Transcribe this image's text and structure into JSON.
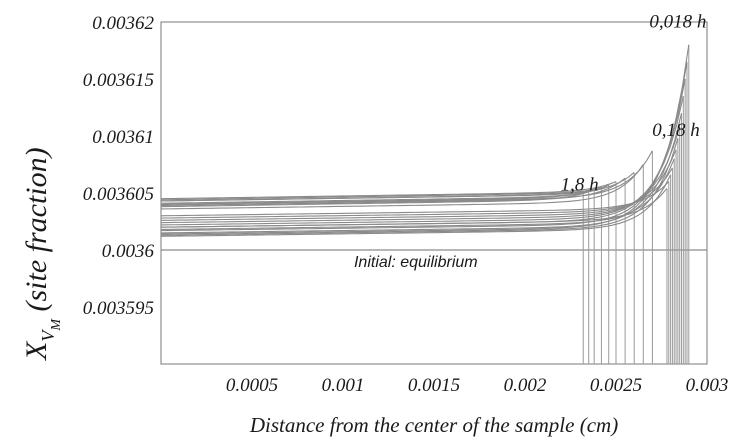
{
  "chart_data": {
    "type": "line",
    "xlabel": "Distance from the center of the sample (cm)",
    "ylabel_main": "X",
    "ylabel_sub_v": "V",
    "ylabel_sub_m": "M",
    "ylabel_rest": " (site fraction)",
    "xlim": [
      0,
      0.003
    ],
    "ylim": [
      0.00359,
      0.00362
    ],
    "x_ticks": [
      {
        "v": 0.0005,
        "label": "0.0005"
      },
      {
        "v": 0.001,
        "label": "0.001"
      },
      {
        "v": 0.0015,
        "label": "0.0015"
      },
      {
        "v": 0.002,
        "label": "0.002"
      },
      {
        "v": 0.0025,
        "label": "0.0025"
      },
      {
        "v": 0.003,
        "label": "0.003"
      }
    ],
    "y_ticks": [
      {
        "v": 0.003595,
        "label": "0.003595"
      },
      {
        "v": 0.0036,
        "label": "0.0036"
      },
      {
        "v": 0.003605,
        "label": "0.003605"
      },
      {
        "v": 0.00361,
        "label": "0.00361"
      },
      {
        "v": 0.003615,
        "label": "0.003615"
      },
      {
        "v": 0.00362,
        "label": "0.00362"
      }
    ],
    "annotations": [
      {
        "text": "0,018 h",
        "x": 0.00284,
        "y": 0.0036195
      },
      {
        "text": "0,18 h",
        "x": 0.00283,
        "y": 0.00361
      },
      {
        "text": "1,8 h",
        "x": 0.0023,
        "y": 0.0036052
      },
      {
        "text": "Initial: equilibrium",
        "x": 0.0014,
        "y": 0.0035985
      }
    ],
    "initial_level": 0.0036,
    "series": [
      {
        "x_end": 0.0029,
        "y_left": 0.0036014,
        "y_end": 0.003618
      },
      {
        "x_end": 0.00289,
        "y_left": 0.0036017,
        "y_end": 0.0036165
      },
      {
        "x_end": 0.00288,
        "y_left": 0.003602,
        "y_end": 0.003615
      },
      {
        "x_end": 0.00287,
        "y_left": 0.0036022,
        "y_end": 0.0036135
      },
      {
        "x_end": 0.00286,
        "y_left": 0.0036015,
        "y_end": 0.003612
      },
      {
        "x_end": 0.00285,
        "y_left": 0.0036024,
        "y_end": 0.0036108
      },
      {
        "x_end": 0.00284,
        "y_left": 0.0036013,
        "y_end": 0.0036098
      },
      {
        "x_end": 0.00283,
        "y_left": 0.0036026,
        "y_end": 0.0036088
      },
      {
        "x_end": 0.00282,
        "y_left": 0.0036018,
        "y_end": 0.003608
      },
      {
        "x_end": 0.00281,
        "y_left": 0.0036028,
        "y_end": 0.0036072
      },
      {
        "x_end": 0.0028,
        "y_left": 0.0036012,
        "y_end": 0.0036066
      },
      {
        "x_end": 0.00279,
        "y_left": 0.003603,
        "y_end": 0.003606
      },
      {
        "x_end": 0.00278,
        "y_left": 0.003602,
        "y_end": 0.0036054
      },
      {
        "x_end": 0.0027,
        "y_left": 0.003604,
        "y_end": 0.0036087
      },
      {
        "x_end": 0.00265,
        "y_left": 0.0036036,
        "y_end": 0.0036075
      },
      {
        "x_end": 0.0026,
        "y_left": 0.0036043,
        "y_end": 0.0036068
      },
      {
        "x_end": 0.00255,
        "y_left": 0.0036039,
        "y_end": 0.0036063
      },
      {
        "x_end": 0.0025,
        "y_left": 0.0036045,
        "y_end": 0.003606
      },
      {
        "x_end": 0.00246,
        "y_left": 0.0036041,
        "y_end": 0.0036057
      },
      {
        "x_end": 0.00242,
        "y_left": 0.0036043,
        "y_end": 0.0036055
      },
      {
        "x_end": 0.00238,
        "y_left": 0.0036038,
        "y_end": 0.0036053
      },
      {
        "x_end": 0.00235,
        "y_left": 0.0036044,
        "y_end": 0.0036052
      },
      {
        "x_end": 0.00232,
        "y_left": 0.003604,
        "y_end": 0.003605
      }
    ]
  }
}
